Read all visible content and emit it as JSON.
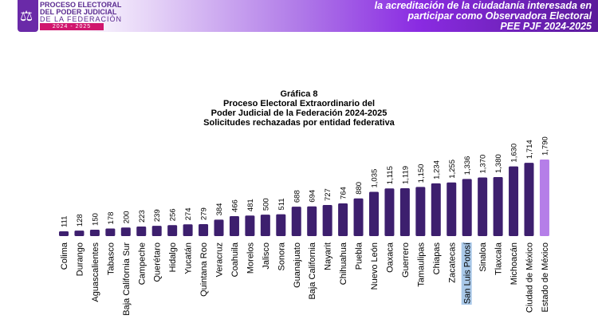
{
  "header": {
    "logo_lines": [
      "PROCESO ELECTORAL",
      "DEL PODER JUDICIAL",
      "DE LA FEDERACIÓN"
    ],
    "logo_year": "2024 - 2025",
    "right_lines": [
      "la acreditación de la ciudadanía interesada en",
      "participar como Observadora Electoral",
      "PEE PJF 2024-2025"
    ]
  },
  "chart_data": {
    "type": "bar",
    "title": "Gráfica 8",
    "subtitle": [
      "Proceso Electoral Extraordinario del",
      "Poder Judicial de la Federación 2024-2025",
      "Solicitudes rechazadas por entidad federativa"
    ],
    "categories": [
      "Colima",
      "Durango",
      "Aguascalientes",
      "Tabasco",
      "Baja California Sur",
      "Campeche",
      "Querétaro",
      "Hidalgo",
      "Yucatán",
      "Quintana Roo",
      "Veracruz",
      "Coahuila",
      "Morelos",
      "Jalisco",
      "Sonora",
      "Guanajuato",
      "Baja California",
      "Nayarit",
      "Chihuahua",
      "Puebla",
      "Nuevo León",
      "Oaxaca",
      "Guerrero",
      "Tamaulipas",
      "Chiapas",
      "Zacatecas",
      "San Luis Potosí",
      "Sinaloa",
      "Tlaxcala",
      "Michoacán",
      "Ciudad de México",
      "Estado de México"
    ],
    "values": [
      111,
      128,
      150,
      178,
      200,
      223,
      239,
      256,
      274,
      279,
      384,
      466,
      481,
      500,
      511,
      688,
      694,
      727,
      764,
      880,
      1035,
      1115,
      1119,
      1150,
      1234,
      1255,
      1336,
      1370,
      1380,
      1630,
      1714,
      1790
    ],
    "labels": [
      "111",
      "128",
      "150",
      "178",
      "200",
      "223",
      "239",
      "256",
      "274",
      "279",
      "384",
      "466",
      "481",
      "500",
      "511",
      "688",
      "694",
      "727",
      "764",
      "880",
      "1,035",
      "1,115",
      "1,119",
      "1,150",
      "1,234",
      "1,255",
      "1,336",
      "1,370",
      "1,380",
      "1,630",
      "1,714",
      "1,790"
    ],
    "ylim": [
      0,
      1790
    ],
    "grid": false,
    "colors": {
      "bar": "#3d1f6e",
      "highlight": "#b57ee8",
      "selection": "#a9c8e8"
    },
    "highlighted_category": "Estado de México",
    "selected_label": "San Luis Potosí"
  }
}
